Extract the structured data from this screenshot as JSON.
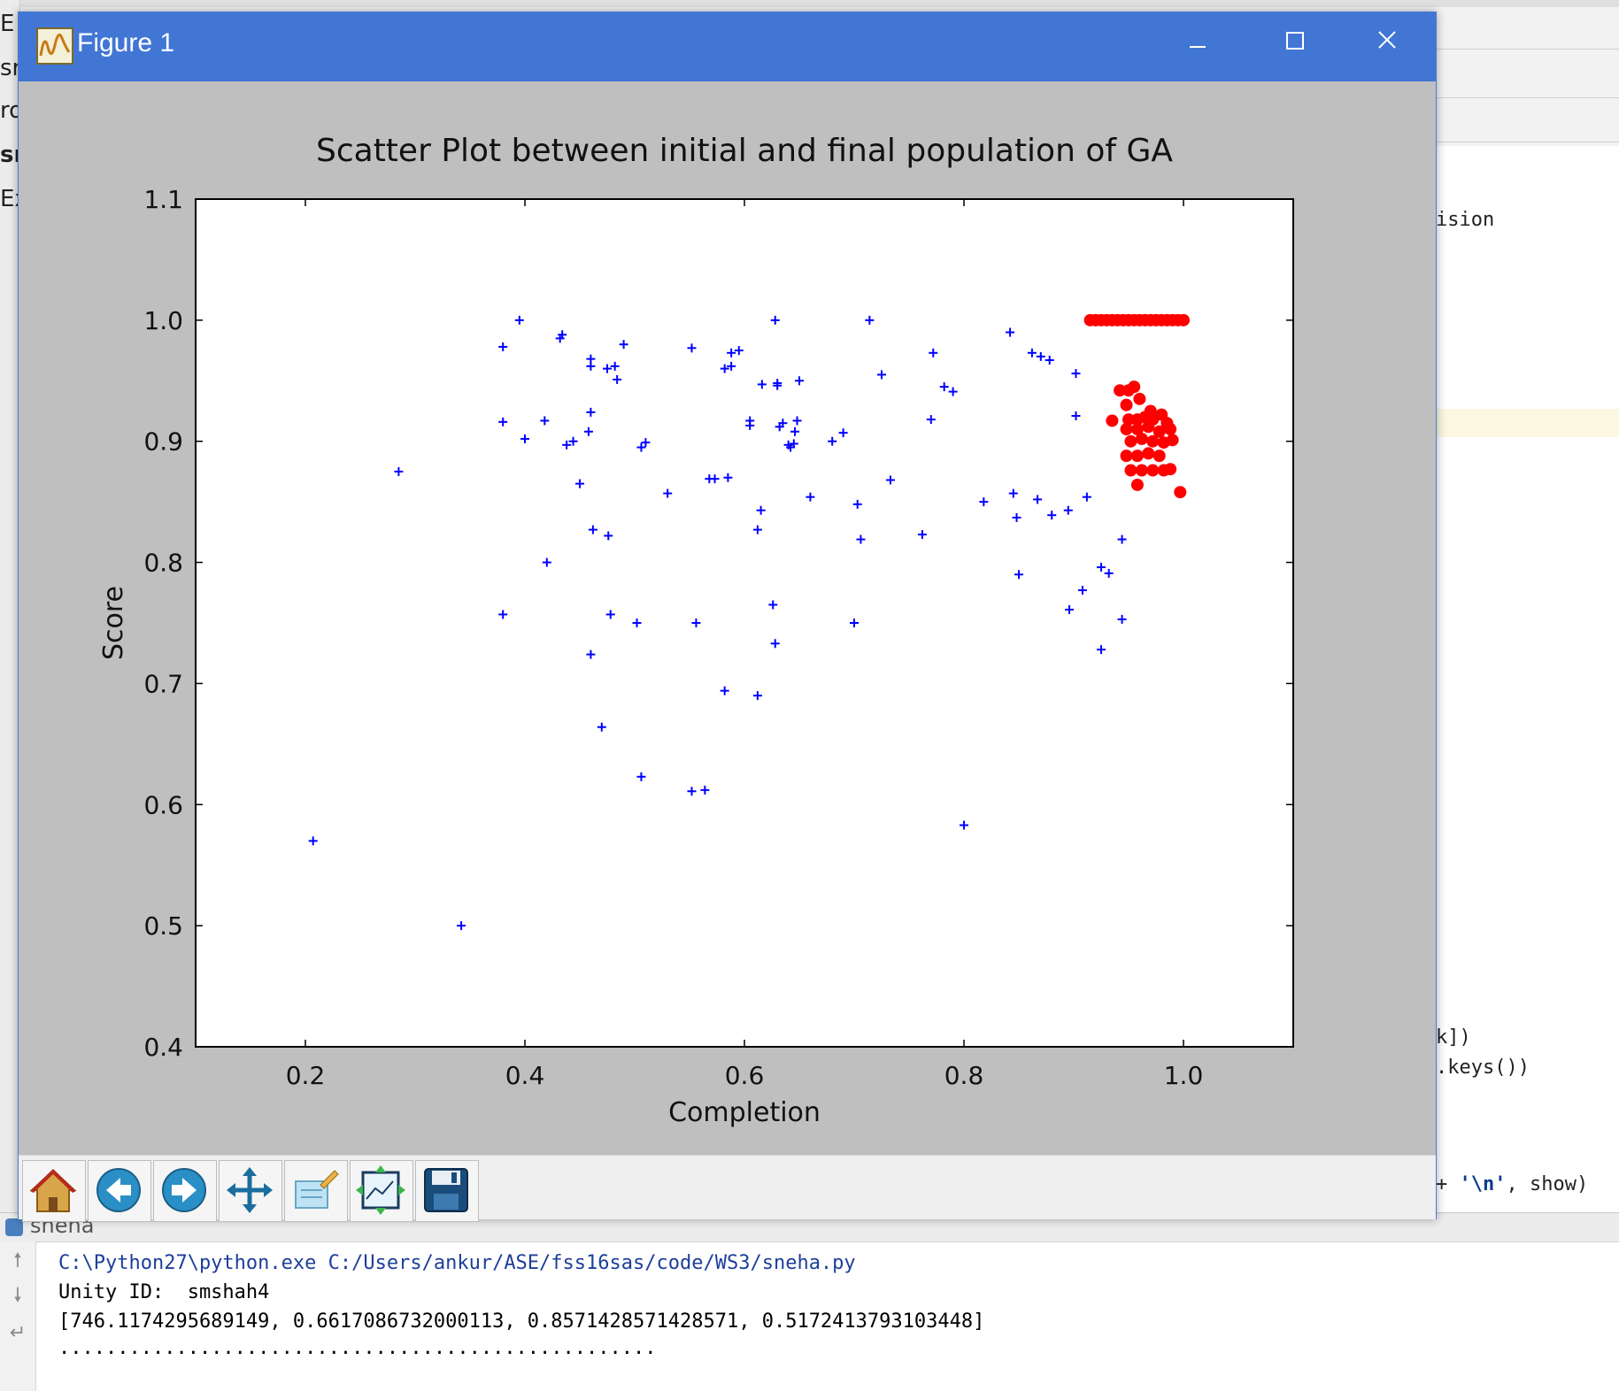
{
  "ide": {
    "left_fragments": [
      "E",
      "sr",
      "ro",
      "sr",
      "Ex"
    ],
    "code_fragments": [
      {
        "text": "ision"
      },
      {
        "text": "k])"
      },
      {
        "text": ".keys())"
      },
      {
        "prefix": "+ ",
        "string": "'\\n'",
        "suffix": ", show)"
      }
    ]
  },
  "window": {
    "title": "Figure 1",
    "controls": [
      "minimize",
      "maximize",
      "close"
    ]
  },
  "chart_data": {
    "type": "scatter",
    "title": "Scatter Plot between initial and final population of GA",
    "xlabel": "Completion",
    "ylabel": "Score",
    "xlim": [
      0.1,
      1.1
    ],
    "ylim": [
      0.4,
      1.1
    ],
    "xticks": [
      "0.2",
      "0.4",
      "0.6",
      "0.8",
      "1.0"
    ],
    "yticks": [
      "0.4",
      "0.5",
      "0.6",
      "0.7",
      "0.8",
      "0.9",
      "1.0",
      "1.1"
    ],
    "grid": false,
    "series": [
      {
        "marker": "+",
        "color": "#0000ff",
        "points": [
          [
            0.207,
            0.57
          ],
          [
            0.342,
            0.5
          ],
          [
            0.285,
            0.875
          ],
          [
            0.38,
            0.978
          ],
          [
            0.395,
            1.0
          ],
          [
            0.38,
            0.916
          ],
          [
            0.4,
            0.902
          ],
          [
            0.418,
            0.917
          ],
          [
            0.432,
            0.985
          ],
          [
            0.434,
            0.988
          ],
          [
            0.438,
            0.897
          ],
          [
            0.444,
            0.9
          ],
          [
            0.45,
            0.865
          ],
          [
            0.458,
            0.908
          ],
          [
            0.46,
            0.924
          ],
          [
            0.46,
            0.962
          ],
          [
            0.46,
            0.968
          ],
          [
            0.462,
            0.827
          ],
          [
            0.476,
            0.822
          ],
          [
            0.47,
            0.664
          ],
          [
            0.475,
            0.96
          ],
          [
            0.482,
            0.962
          ],
          [
            0.484,
            0.951
          ],
          [
            0.49,
            0.98
          ],
          [
            0.478,
            0.757
          ],
          [
            0.42,
            0.8
          ],
          [
            0.38,
            0.757
          ],
          [
            0.46,
            0.724
          ],
          [
            0.502,
            0.75
          ],
          [
            0.506,
            0.895
          ],
          [
            0.51,
            0.899
          ],
          [
            0.506,
            0.623
          ],
          [
            0.53,
            0.857
          ],
          [
            0.552,
            0.977
          ],
          [
            0.552,
            0.611
          ],
          [
            0.556,
            0.75
          ],
          [
            0.564,
            0.612
          ],
          [
            0.568,
            0.869
          ],
          [
            0.573,
            0.869
          ],
          [
            0.582,
            0.96
          ],
          [
            0.588,
            0.962
          ],
          [
            0.588,
            0.973
          ],
          [
            0.595,
            0.975
          ],
          [
            0.585,
            0.87
          ],
          [
            0.582,
            0.694
          ],
          [
            0.605,
            0.917
          ],
          [
            0.605,
            0.913
          ],
          [
            0.612,
            0.69
          ],
          [
            0.612,
            0.827
          ],
          [
            0.615,
            0.843
          ],
          [
            0.616,
            0.947
          ],
          [
            0.628,
            1.0
          ],
          [
            0.63,
            0.948
          ],
          [
            0.63,
            0.946
          ],
          [
            0.632,
            0.912
          ],
          [
            0.635,
            0.915
          ],
          [
            0.64,
            0.897
          ],
          [
            0.642,
            0.895
          ],
          [
            0.645,
            0.898
          ],
          [
            0.646,
            0.908
          ],
          [
            0.648,
            0.917
          ],
          [
            0.65,
            0.95
          ],
          [
            0.626,
            0.765
          ],
          [
            0.628,
            0.733
          ],
          [
            0.66,
            0.854
          ],
          [
            0.68,
            0.9
          ],
          [
            0.69,
            0.907
          ],
          [
            0.7,
            0.75
          ],
          [
            0.703,
            0.848
          ],
          [
            0.706,
            0.819
          ],
          [
            0.714,
            1.0
          ],
          [
            0.725,
            0.955
          ],
          [
            0.733,
            0.868
          ],
          [
            0.762,
            0.823
          ],
          [
            0.77,
            0.918
          ],
          [
            0.772,
            0.973
          ],
          [
            0.782,
            0.945
          ],
          [
            0.79,
            0.941
          ],
          [
            0.8,
            0.583
          ],
          [
            0.818,
            0.85
          ],
          [
            0.842,
            0.99
          ],
          [
            0.845,
            0.857
          ],
          [
            0.848,
            0.837
          ],
          [
            0.85,
            0.79
          ],
          [
            0.862,
            0.973
          ],
          [
            0.87,
            0.97
          ],
          [
            0.867,
            0.852
          ],
          [
            0.878,
            0.967
          ],
          [
            0.88,
            0.839
          ],
          [
            0.895,
            0.843
          ],
          [
            0.902,
            0.956
          ],
          [
            0.902,
            0.921
          ],
          [
            0.896,
            0.761
          ],
          [
            0.908,
            0.777
          ],
          [
            0.912,
            0.854
          ],
          [
            0.925,
            0.728
          ],
          [
            0.925,
            0.796
          ],
          [
            0.932,
            0.791
          ],
          [
            0.944,
            0.819
          ],
          [
            0.944,
            0.753
          ]
        ]
      },
      {
        "marker": "o",
        "color": "#ff0000",
        "points": [
          [
            0.915,
            1.0
          ],
          [
            0.92,
            1.0
          ],
          [
            0.925,
            1.0
          ],
          [
            0.93,
            1.0
          ],
          [
            0.935,
            1.0
          ],
          [
            0.94,
            1.0
          ],
          [
            0.945,
            1.0
          ],
          [
            0.95,
            1.0
          ],
          [
            0.955,
            1.0
          ],
          [
            0.96,
            1.0
          ],
          [
            0.965,
            1.0
          ],
          [
            0.97,
            1.0
          ],
          [
            0.975,
            1.0
          ],
          [
            0.98,
            1.0
          ],
          [
            0.985,
            1.0
          ],
          [
            0.99,
            1.0
          ],
          [
            0.995,
            1.0
          ],
          [
            1.0,
            1.0
          ],
          [
            0.935,
            0.917
          ],
          [
            0.942,
            0.942
          ],
          [
            0.95,
            0.942
          ],
          [
            0.955,
            0.945
          ],
          [
            0.948,
            0.93
          ],
          [
            0.96,
            0.935
          ],
          [
            0.97,
            0.925
          ],
          [
            0.98,
            0.922
          ],
          [
            0.95,
            0.918
          ],
          [
            0.958,
            0.918
          ],
          [
            0.965,
            0.92
          ],
          [
            0.972,
            0.918
          ],
          [
            0.985,
            0.915
          ],
          [
            0.948,
            0.91
          ],
          [
            0.958,
            0.91
          ],
          [
            0.968,
            0.912
          ],
          [
            0.978,
            0.908
          ],
          [
            0.988,
            0.91
          ],
          [
            0.952,
            0.9
          ],
          [
            0.962,
            0.902
          ],
          [
            0.972,
            0.9
          ],
          [
            0.982,
            0.899
          ],
          [
            0.99,
            0.901
          ],
          [
            0.948,
            0.888
          ],
          [
            0.958,
            0.888
          ],
          [
            0.968,
            0.89
          ],
          [
            0.978,
            0.888
          ],
          [
            0.952,
            0.876
          ],
          [
            0.962,
            0.876
          ],
          [
            0.972,
            0.876
          ],
          [
            0.982,
            0.876
          ],
          [
            0.988,
            0.877
          ],
          [
            0.958,
            0.864
          ],
          [
            0.997,
            0.858
          ]
        ]
      }
    ]
  },
  "toolbar": {
    "buttons": [
      {
        "name": "home-button",
        "icon": "home-icon"
      },
      {
        "name": "back-button",
        "icon": "back-arrow-icon"
      },
      {
        "name": "forward-button",
        "icon": "forward-arrow-icon"
      },
      {
        "name": "pan-button",
        "icon": "pan-icon"
      },
      {
        "name": "zoom-button",
        "icon": "zoom-icon"
      },
      {
        "name": "subplots-button",
        "icon": "subplots-icon"
      },
      {
        "name": "save-button",
        "icon": "save-icon"
      }
    ]
  },
  "console": {
    "name": "sneha",
    "lines": [
      "C:\\Python27\\python.exe C:/Users/ankur/ASE/fss16sas/code/WS3/sneha.py",
      "Unity ID:  smshah4",
      "[746.1174295689149, 0.6617086732000113, 0.8571428571428571, 0.5172413793103448]",
      "..................................................."
    ]
  }
}
